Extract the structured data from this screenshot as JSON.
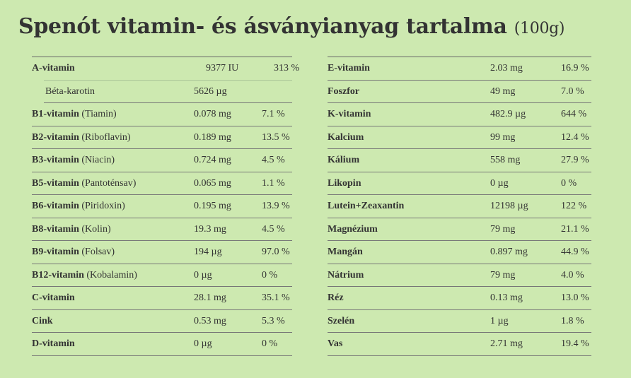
{
  "title": "Spenót vitamin- és ásványianyag tartalma",
  "title_unit": "(100g)",
  "left": [
    {
      "name": "A-vitamin",
      "alt": "",
      "value": "9377 IU",
      "pct": "313 %"
    },
    {
      "name": "Béta-karotin",
      "alt": "",
      "value": "5626 µg",
      "pct": "",
      "sub": true
    },
    {
      "name": "B1-vitamin",
      "alt": "(Tiamin)",
      "value": "0.078 mg",
      "pct": "7.1 %"
    },
    {
      "name": "B2-vitamin",
      "alt": "(Riboflavin)",
      "value": "0.189 mg",
      "pct": "13.5 %"
    },
    {
      "name": "B3-vitamin",
      "alt": "(Niacin)",
      "value": "0.724 mg",
      "pct": "4.5 %"
    },
    {
      "name": "B5-vitamin",
      "alt": "(Pantoténsav)",
      "value": "0.065 mg",
      "pct": "1.1 %"
    },
    {
      "name": "B6-vitamin",
      "alt": "(Piridoxin)",
      "value": "0.195 mg",
      "pct": "13.9 %"
    },
    {
      "name": "B8-vitamin",
      "alt": "(Kolin)",
      "value": "19.3 mg",
      "pct": "4.5 %"
    },
    {
      "name": "B9-vitamin",
      "alt": "(Folsav)",
      "value": "194 µg",
      "pct": "97.0 %"
    },
    {
      "name": "B12-vitamin",
      "alt": "(Kobalamin)",
      "value": "0 µg",
      "pct": "0 %"
    },
    {
      "name": "C-vitamin",
      "alt": "",
      "value": "28.1 mg",
      "pct": "35.1 %"
    },
    {
      "name": "Cink",
      "alt": "",
      "value": "0.53 mg",
      "pct": "5.3 %"
    },
    {
      "name": "D-vitamin",
      "alt": "",
      "value": "0 µg",
      "pct": "0 %"
    }
  ],
  "right": [
    {
      "name": "E-vitamin",
      "alt": "",
      "value": "2.03 mg",
      "pct": "16.9 %"
    },
    {
      "name": "Foszfor",
      "alt": "",
      "value": "49 mg",
      "pct": "7.0 %"
    },
    {
      "name": "K-vitamin",
      "alt": "",
      "value": "482.9 µg",
      "pct": "644 %"
    },
    {
      "name": "Kalcium",
      "alt": "",
      "value": "99 mg",
      "pct": "12.4 %"
    },
    {
      "name": "Kálium",
      "alt": "",
      "value": "558 mg",
      "pct": "27.9 %"
    },
    {
      "name": "Likopin",
      "alt": "",
      "value": "0 µg",
      "pct": "0 %"
    },
    {
      "name": "Lutein+Zeaxantin",
      "alt": "",
      "value": "12198 µg",
      "pct": "122 %"
    },
    {
      "name": "Magnézium",
      "alt": "",
      "value": "79 mg",
      "pct": "21.1 %"
    },
    {
      "name": "Mangán",
      "alt": "",
      "value": "0.897 mg",
      "pct": "44.9 %"
    },
    {
      "name": "Nátrium",
      "alt": "",
      "value": "79 mg",
      "pct": "4.0 %"
    },
    {
      "name": "Réz",
      "alt": "",
      "value": "0.13 mg",
      "pct": "13.0 %"
    },
    {
      "name": "Szelén",
      "alt": "",
      "value": "1 µg",
      "pct": "1.8 %"
    },
    {
      "name": "Vas",
      "alt": "",
      "value": "2.71 mg",
      "pct": "19.4 %"
    }
  ]
}
